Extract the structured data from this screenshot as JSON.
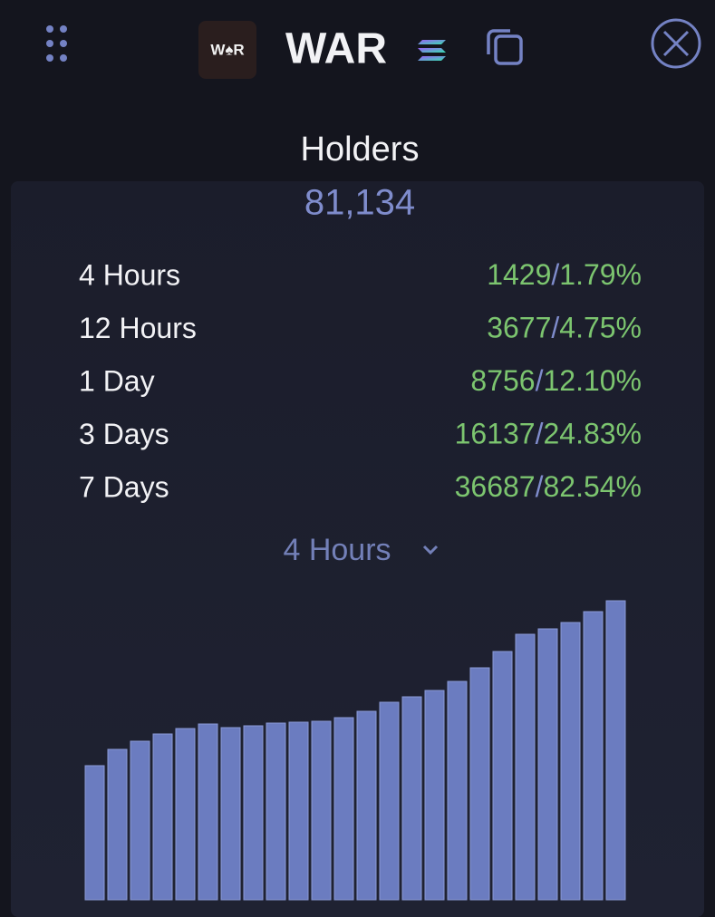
{
  "header": {
    "logo_text": "W♠R",
    "title": "WAR"
  },
  "summary": {
    "title": "Holders",
    "value": "81,134"
  },
  "separator": "/",
  "rows": [
    {
      "label": "4 Hours",
      "count": "1429",
      "pct": "1.79%"
    },
    {
      "label": "12 Hours",
      "count": "3677",
      "pct": "4.75%"
    },
    {
      "label": "1 Day",
      "count": "8756",
      "pct": "12.10%"
    },
    {
      "label": "3 Days",
      "count": "16137",
      "pct": "24.83%"
    },
    {
      "label": "7 Days",
      "count": "36687",
      "pct": "82.54%"
    }
  ],
  "dropdown": "4 Hours",
  "chart_data": {
    "type": "bar",
    "color": "#6b7cc0",
    "values": [
      148,
      166,
      175,
      183,
      189,
      194,
      190,
      192,
      195,
      196,
      197,
      201,
      208,
      218,
      224,
      231,
      241,
      256,
      274,
      293,
      299,
      306,
      318,
      330
    ]
  }
}
